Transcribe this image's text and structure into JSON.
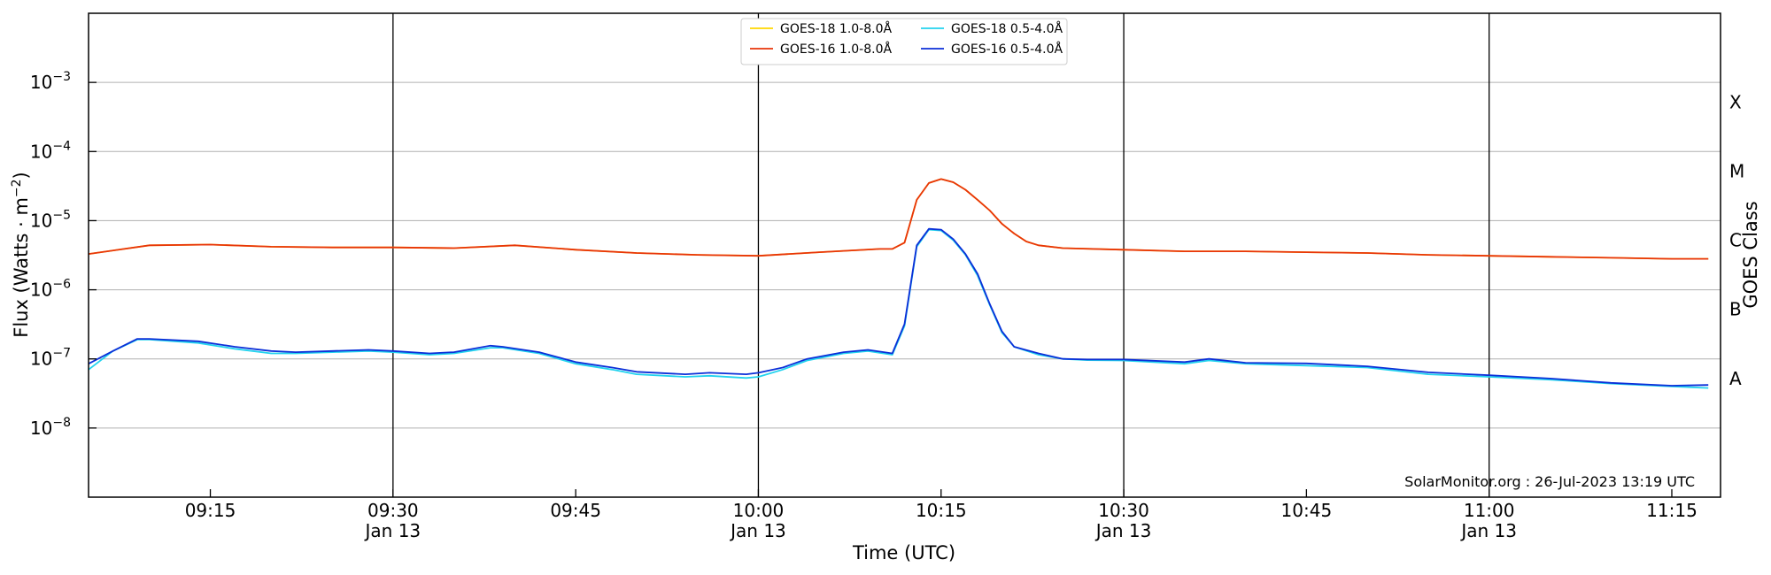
{
  "chart_data": {
    "type": "line",
    "xlabel": "Time (UTC)",
    "ylabel": "Flux (Watts · m",
    "ylabel_exponent": "−2",
    "ylabel_suffix": ")",
    "y2label": "GOES Class",
    "yscale": "log",
    "xlim": [
      "09:05",
      "11:19"
    ],
    "ylim": [
      1e-09,
      0.01
    ],
    "grid": "horizontal",
    "legend_position": "top-center",
    "watermark": "SolarMonitor.org : 26-Jul-2023 13:19 UTC",
    "x_ticks": [
      {
        "time": "09:15",
        "label": "09:15",
        "sublabel": ""
      },
      {
        "time": "09:30",
        "label": "09:30",
        "sublabel": "Jan 13"
      },
      {
        "time": "09:45",
        "label": "09:45",
        "sublabel": ""
      },
      {
        "time": "10:00",
        "label": "10:00",
        "sublabel": "Jan 13"
      },
      {
        "time": "10:15",
        "label": "10:15",
        "sublabel": ""
      },
      {
        "time": "10:30",
        "label": "10:30",
        "sublabel": "Jan 13"
      },
      {
        "time": "10:45",
        "label": "10:45",
        "sublabel": ""
      },
      {
        "time": "11:00",
        "label": "11:00",
        "sublabel": "Jan 13"
      },
      {
        "time": "11:15",
        "label": "11:15",
        "sublabel": ""
      }
    ],
    "vertical_lines": [
      "09:30",
      "10:00",
      "10:30",
      "11:00"
    ],
    "y_ticks": [
      {
        "value": 1e-08,
        "base": "10",
        "exp": "−8"
      },
      {
        "value": 1e-07,
        "base": "10",
        "exp": "−7"
      },
      {
        "value": 1e-06,
        "base": "10",
        "exp": "−6"
      },
      {
        "value": 1e-05,
        "base": "10",
        "exp": "−5"
      },
      {
        "value": 0.0001,
        "base": "10",
        "exp": "−4"
      },
      {
        "value": 0.001,
        "base": "10",
        "exp": "−3"
      }
    ],
    "classes": [
      {
        "label": "A",
        "value": 1e-08
      },
      {
        "label": "B",
        "value": 1e-07
      },
      {
        "label": "C",
        "value": 1e-06
      },
      {
        "label": "M",
        "value": 1e-05
      },
      {
        "label": "X",
        "value": 0.0001
      }
    ],
    "series": [
      {
        "name": "GOES-18 1.0-8.0Å",
        "color": "#ffd700",
        "x": [
          "09:05",
          "09:10",
          "09:15",
          "09:20",
          "09:25",
          "09:30",
          "09:35",
          "09:40",
          "09:45",
          "09:50",
          "09:55",
          "10:00",
          "10:05",
          "10:10",
          "10:11",
          "10:12",
          "10:13",
          "10:14",
          "10:15",
          "10:16",
          "10:17",
          "10:18",
          "10:19",
          "10:20",
          "10:21",
          "10:22",
          "10:23",
          "10:25",
          "10:30",
          "10:35",
          "10:40",
          "10:45",
          "10:50",
          "10:55",
          "11:00",
          "11:05",
          "11:10",
          "11:15",
          "11:18"
        ],
        "y": [
          3.3e-06,
          4.4e-06,
          4.5e-06,
          4.2e-06,
          4.1e-06,
          4.1e-06,
          4e-06,
          4.4e-06,
          3.8e-06,
          3.4e-06,
          3.2e-06,
          3.1e-06,
          3.5e-06,
          3.9e-06,
          3.9e-06,
          4.8e-06,
          2e-05,
          3.5e-05,
          4e-05,
          3.6e-05,
          2.8e-05,
          2e-05,
          1.4e-05,
          9e-06,
          6.5e-06,
          5e-06,
          4.4e-06,
          4e-06,
          3.8e-06,
          3.6e-06,
          3.6e-06,
          3.5e-06,
          3.4e-06,
          3.2e-06,
          3.1e-06,
          3e-06,
          2.9e-06,
          2.8e-06,
          2.8e-06
        ]
      },
      {
        "name": "GOES-16 1.0-8.0Å",
        "color": "#e8340a",
        "x": [
          "09:05",
          "09:10",
          "09:15",
          "09:20",
          "09:25",
          "09:30",
          "09:35",
          "09:40",
          "09:45",
          "09:50",
          "09:55",
          "10:00",
          "10:05",
          "10:10",
          "10:11",
          "10:12",
          "10:13",
          "10:14",
          "10:15",
          "10:16",
          "10:17",
          "10:18",
          "10:19",
          "10:20",
          "10:21",
          "10:22",
          "10:23",
          "10:25",
          "10:30",
          "10:35",
          "10:40",
          "10:45",
          "10:50",
          "10:55",
          "11:00",
          "11:05",
          "11:10",
          "11:15",
          "11:18"
        ],
        "y": [
          3.3e-06,
          4.4e-06,
          4.5e-06,
          4.2e-06,
          4.1e-06,
          4.1e-06,
          4e-06,
          4.4e-06,
          3.8e-06,
          3.4e-06,
          3.2e-06,
          3.1e-06,
          3.5e-06,
          3.9e-06,
          3.9e-06,
          4.8e-06,
          2e-05,
          3.5e-05,
          4e-05,
          3.6e-05,
          2.8e-05,
          2e-05,
          1.4e-05,
          9e-06,
          6.5e-06,
          5e-06,
          4.4e-06,
          4e-06,
          3.8e-06,
          3.6e-06,
          3.6e-06,
          3.5e-06,
          3.4e-06,
          3.2e-06,
          3.1e-06,
          3e-06,
          2.9e-06,
          2.8e-06,
          2.8e-06
        ]
      },
      {
        "name": "GOES-18 0.5-4.0Å",
        "color": "#22d3ee",
        "x": [
          "09:05",
          "09:07",
          "09:09",
          "09:10",
          "09:14",
          "09:17",
          "09:20",
          "09:22",
          "09:25",
          "09:28",
          "09:30",
          "09:33",
          "09:35",
          "09:38",
          "09:39",
          "09:42",
          "09:45",
          "09:48",
          "09:50",
          "09:54",
          "09:56",
          "09:59",
          "10:00",
          "10:02",
          "10:04",
          "10:07",
          "10:09",
          "10:11",
          "10:12",
          "10:13",
          "10:14",
          "10:15",
          "10:16",
          "10:17",
          "10:18",
          "10:19",
          "10:20",
          "10:21",
          "10:23",
          "10:25",
          "10:27",
          "10:30",
          "10:35",
          "10:37",
          "10:40",
          "10:45",
          "10:50",
          "10:55",
          "11:00",
          "11:05",
          "11:10",
          "11:15",
          "11:18"
        ],
        "y": [
          7e-08,
          1.3e-07,
          1.9e-07,
          1.9e-07,
          1.7e-07,
          1.4e-07,
          1.2e-07,
          1.2e-07,
          1.25e-07,
          1.3e-07,
          1.25e-07,
          1.15e-07,
          1.2e-07,
          1.45e-07,
          1.45e-07,
          1.2e-07,
          8.5e-08,
          7e-08,
          6e-08,
          5.5e-08,
          5.7e-08,
          5.3e-08,
          5.5e-08,
          7e-08,
          9.5e-08,
          1.2e-07,
          1.3e-07,
          1.15e-07,
          3e-07,
          4.2e-06,
          7.4e-06,
          7.2e-06,
          5.2e-06,
          3.2e-06,
          1.6e-06,
          6e-07,
          2.4e-07,
          1.5e-07,
          1.15e-07,
          1e-07,
          9.6e-08,
          9.5e-08,
          8.5e-08,
          9.5e-08,
          8.5e-08,
          8e-08,
          7.5e-08,
          6e-08,
          5.5e-08,
          5e-08,
          4.4e-08,
          4e-08,
          3.8e-08
        ]
      },
      {
        "name": "GOES-16 0.5-4.0Å",
        "color": "#0b2fd8",
        "x": [
          "09:05",
          "09:07",
          "09:09",
          "09:10",
          "09:14",
          "09:17",
          "09:20",
          "09:22",
          "09:25",
          "09:28",
          "09:30",
          "09:33",
          "09:35",
          "09:38",
          "09:39",
          "09:42",
          "09:45",
          "09:48",
          "09:50",
          "09:54",
          "09:56",
          "09:59",
          "10:00",
          "10:02",
          "10:04",
          "10:07",
          "10:09",
          "10:11",
          "10:12",
          "10:13",
          "10:14",
          "10:15",
          "10:16",
          "10:17",
          "10:18",
          "10:19",
          "10:20",
          "10:21",
          "10:23",
          "10:25",
          "10:27",
          "10:30",
          "10:35",
          "10:37",
          "10:40",
          "10:45",
          "10:50",
          "10:55",
          "11:00",
          "11:05",
          "11:10",
          "11:15",
          "11:18"
        ],
        "y": [
          8.5e-08,
          1.3e-07,
          1.95e-07,
          1.95e-07,
          1.8e-07,
          1.5e-07,
          1.3e-07,
          1.25e-07,
          1.3e-07,
          1.35e-07,
          1.3e-07,
          1.2e-07,
          1.25e-07,
          1.55e-07,
          1.5e-07,
          1.25e-07,
          9e-08,
          7.5e-08,
          6.5e-08,
          6e-08,
          6.3e-08,
          6e-08,
          6.3e-08,
          7.5e-08,
          1e-07,
          1.25e-07,
          1.35e-07,
          1.2e-07,
          3.2e-07,
          4.4e-06,
          7.6e-06,
          7.4e-06,
          5.4e-06,
          3.3e-06,
          1.7e-06,
          6.2e-07,
          2.5e-07,
          1.5e-07,
          1.2e-07,
          1e-07,
          9.8e-08,
          9.8e-08,
          9e-08,
          1e-07,
          8.8e-08,
          8.6e-08,
          7.8e-08,
          6.4e-08,
          5.8e-08,
          5.2e-08,
          4.5e-08,
          4.1e-08,
          4.2e-08
        ]
      }
    ]
  }
}
